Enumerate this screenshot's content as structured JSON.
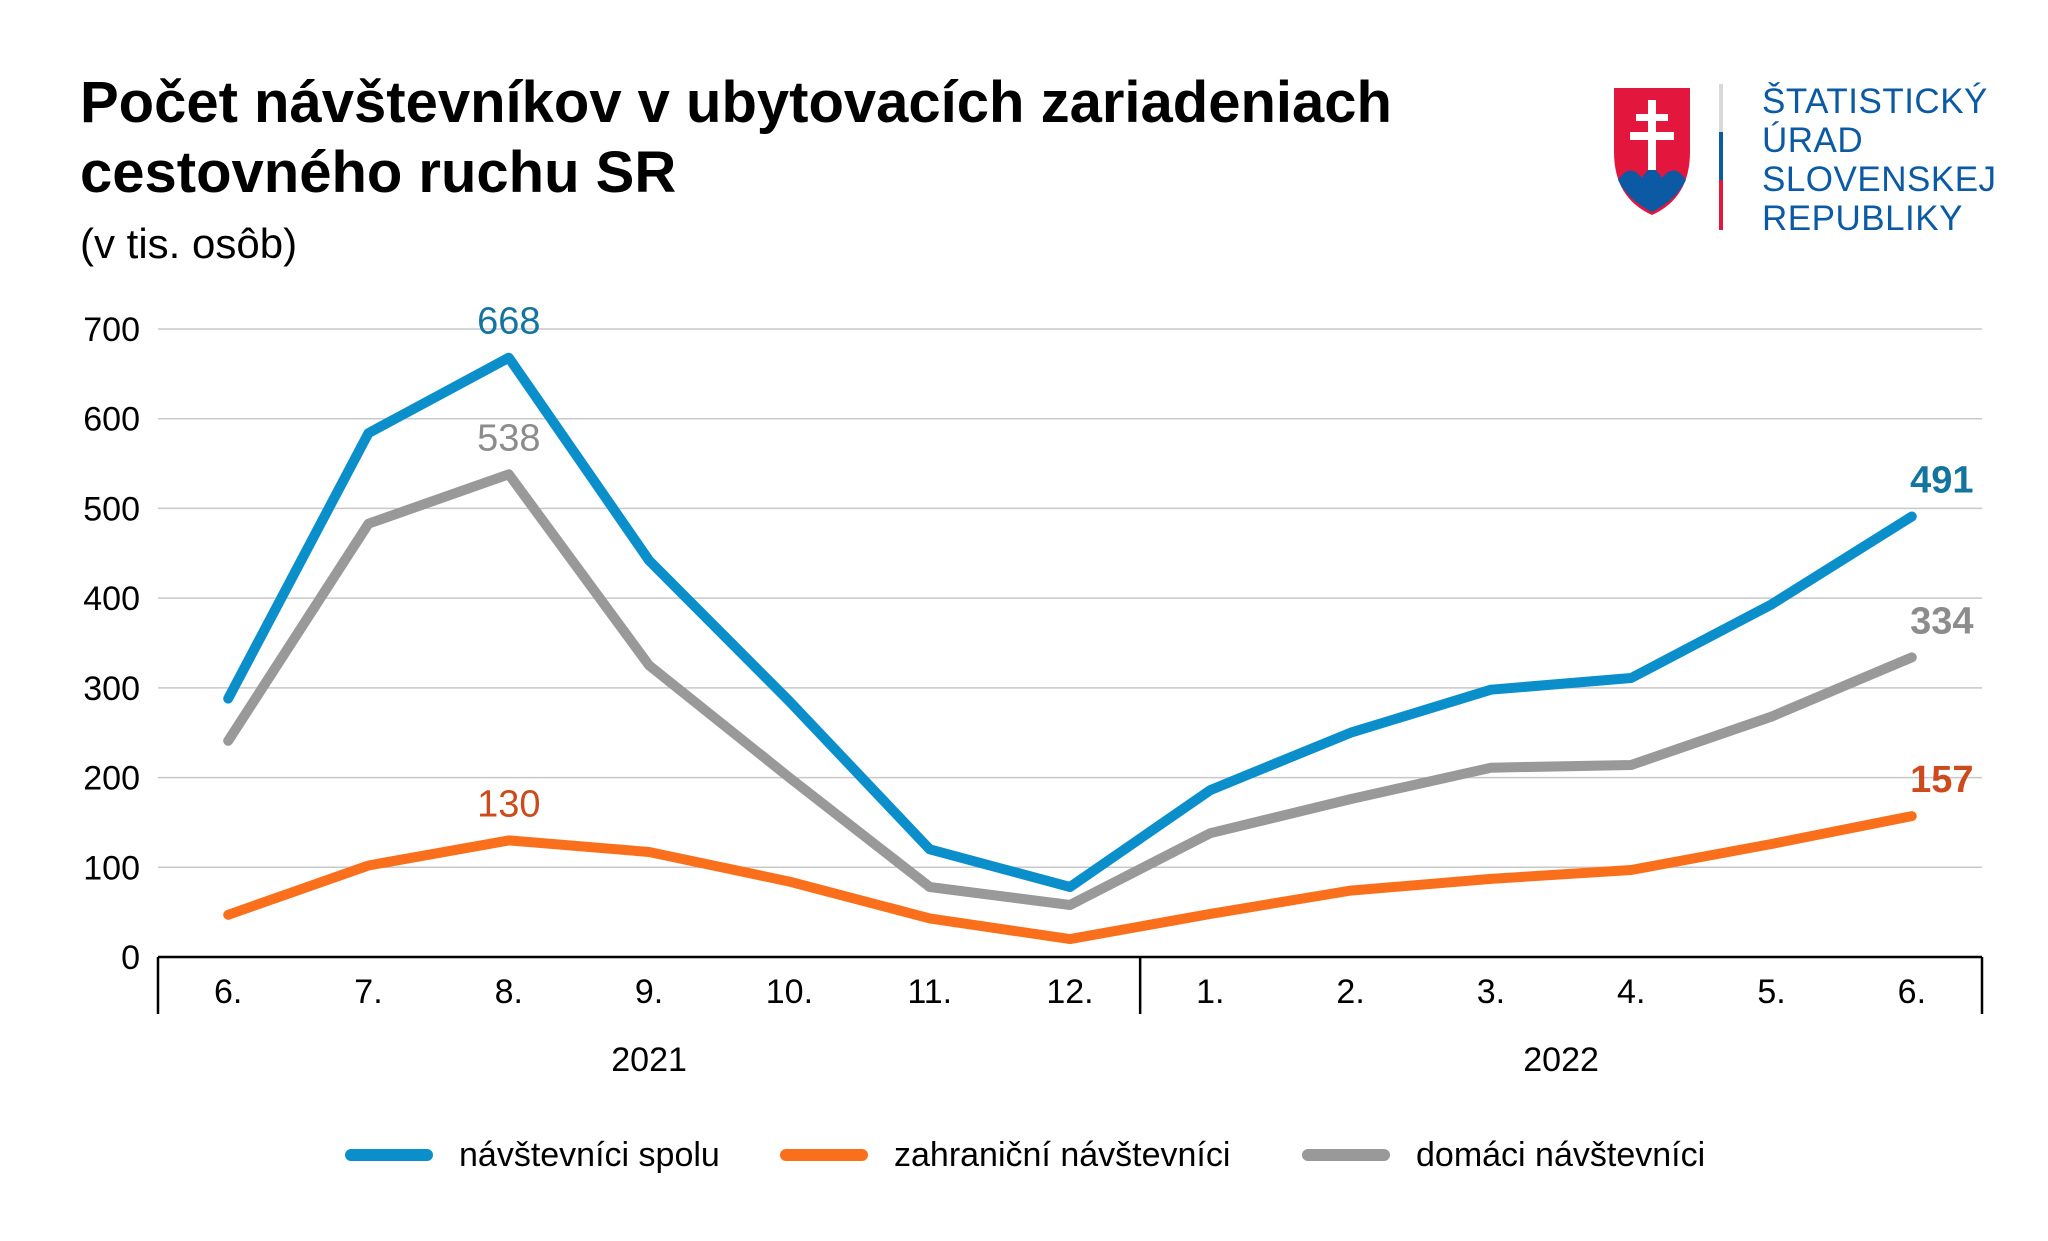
{
  "header": {
    "title_line1": "Počet návštevníkov v ubytovacích zariadeniach",
    "title_line2": "cestovného ruchu SR",
    "subtitle": "(v tis. osôb)"
  },
  "logo": {
    "line1": "ŠTATISTICKÝ",
    "line2": "ÚRAD",
    "line3": "SLOVENSKEJ",
    "line4": "REPUBLIKY",
    "text_color": "#0b5aa3",
    "emblem_icon": "slovak-coat-of-arms-icon"
  },
  "chart_data": {
    "type": "line",
    "categories": [
      "6.",
      "7.",
      "8.",
      "9.",
      "10.",
      "11.",
      "12.",
      "1.",
      "2.",
      "3.",
      "4.",
      "5.",
      "6."
    ],
    "year_groups": [
      {
        "label": "2021",
        "categories": [
          "6.",
          "7.",
          "8.",
          "9.",
          "10.",
          "11.",
          "12."
        ]
      },
      {
        "label": "2022",
        "categories": [
          "1.",
          "2.",
          "3.",
          "4.",
          "5.",
          "6."
        ]
      }
    ],
    "ylim": [
      0,
      700
    ],
    "yticks": [
      0,
      100,
      200,
      300,
      400,
      500,
      600,
      700
    ],
    "grid": true,
    "legend_position": "bottom",
    "series": [
      {
        "name": "návštevníci spolu",
        "color": "#0a8fcb",
        "values": [
          288,
          584,
          668,
          442,
          285,
          120,
          78,
          186,
          250,
          298,
          311,
          393,
          491
        ]
      },
      {
        "name": "zahraniční návštevníci",
        "color": "#fa6f1c",
        "values": [
          47,
          102,
          130,
          117,
          84,
          43,
          20,
          48,
          74,
          87,
          97,
          126,
          157
        ]
      },
      {
        "name": "domáci návštevníci",
        "color": "#999999",
        "values": [
          241,
          483,
          538,
          325,
          200,
          78,
          58,
          138,
          176,
          211,
          214,
          268,
          334
        ]
      }
    ],
    "annotations": [
      {
        "series": 0,
        "index": 2,
        "text": "668",
        "bold": false
      },
      {
        "series": 2,
        "index": 2,
        "text": "538",
        "bold": false
      },
      {
        "series": 1,
        "index": 2,
        "text": "130",
        "bold": false
      },
      {
        "series": 0,
        "index": 12,
        "text": "491",
        "bold": true
      },
      {
        "series": 2,
        "index": 12,
        "text": "334",
        "bold": true
      },
      {
        "series": 1,
        "index": 12,
        "text": "157",
        "bold": true
      }
    ],
    "annotation_colors": [
      "#13759f",
      "#cc4a1c",
      "#8c8c8c"
    ]
  }
}
